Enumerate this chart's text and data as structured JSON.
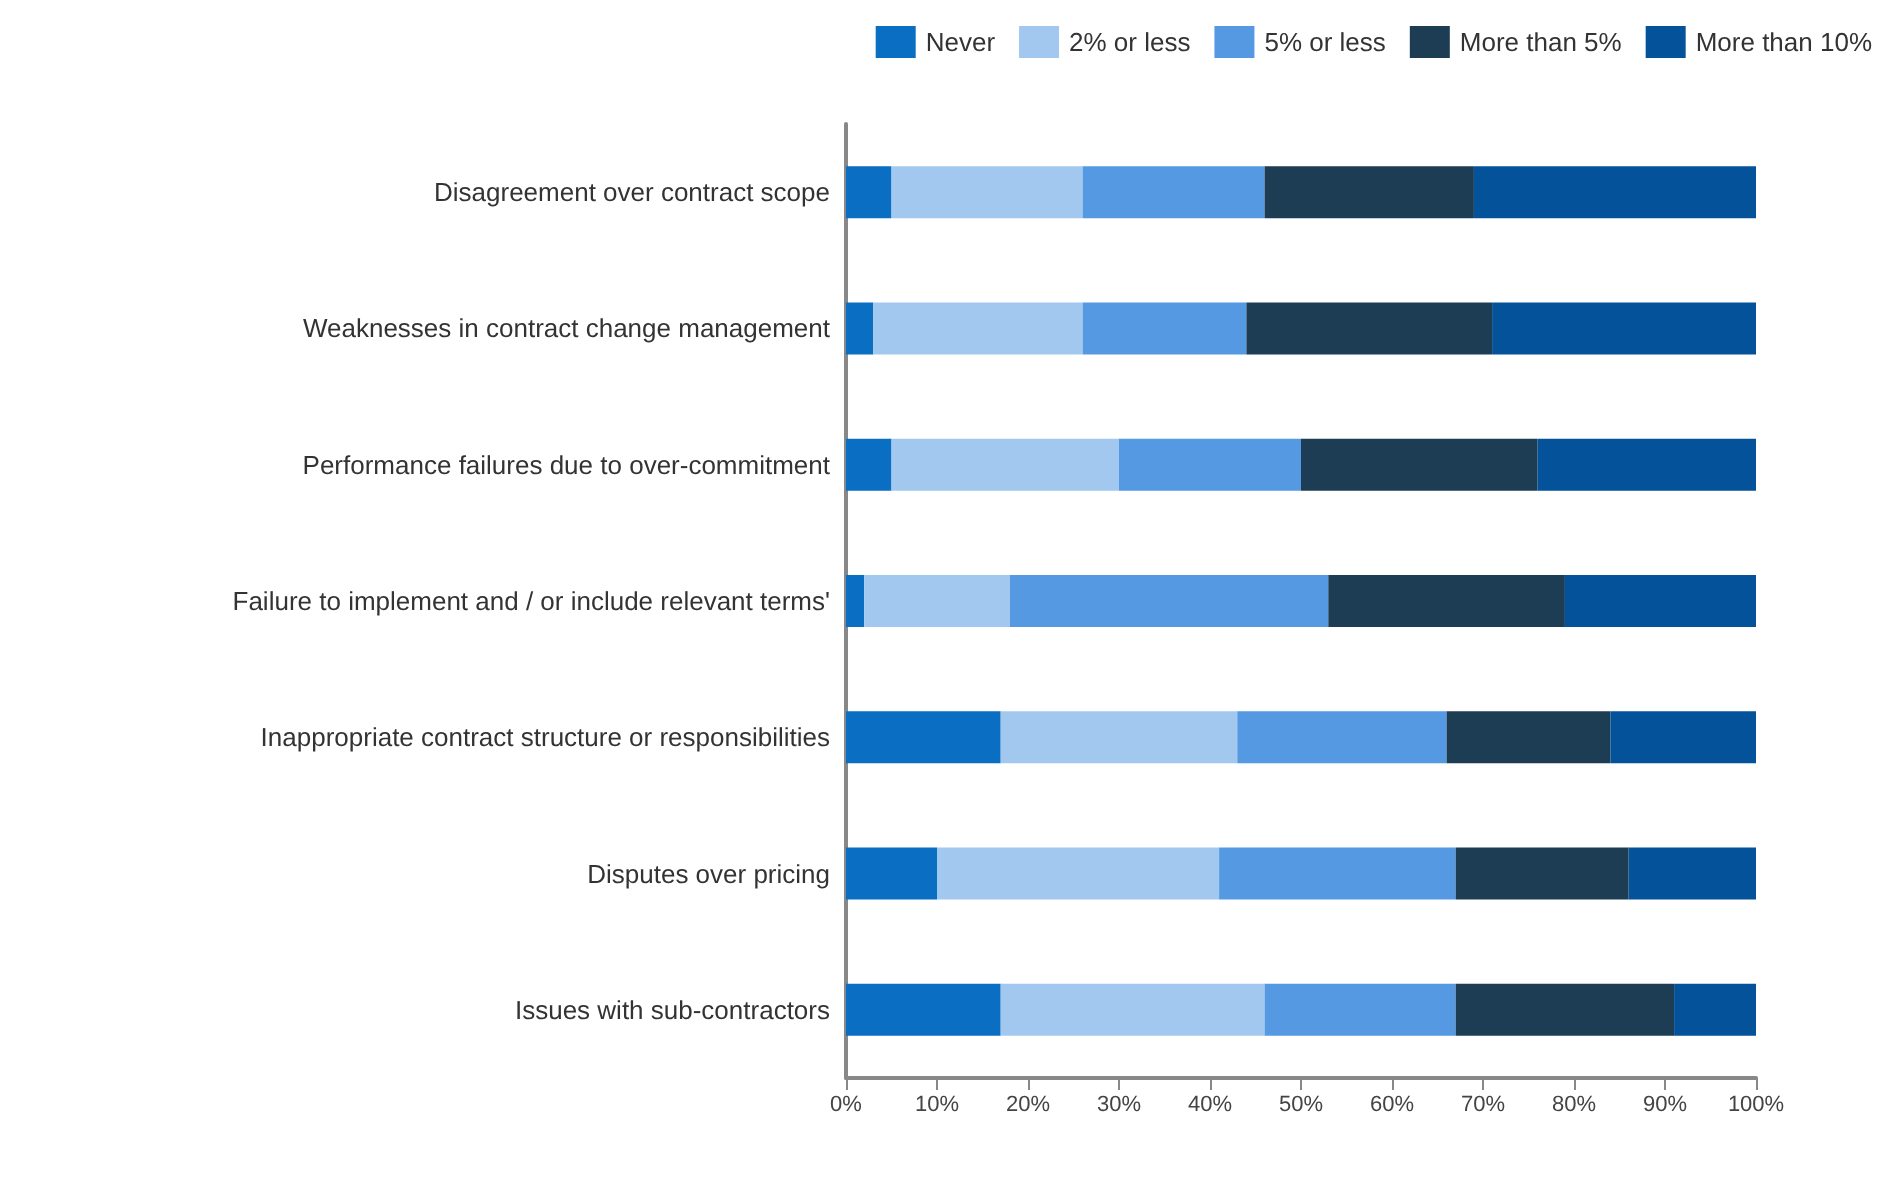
{
  "chart_data": {
    "type": "bar",
    "orientation": "horizontal",
    "stacked": true,
    "legend": "top right",
    "grid": false,
    "categories": [
      "Disagreement over contract scope",
      "Weaknesses in contract change management",
      "Performance failures due to over-commitment",
      "Failure to implement and / or include relevant terms'",
      "Inappropriate contract structure or responsibilities",
      "Disputes over pricing",
      "Issues with sub-contractors"
    ],
    "series": [
      {
        "name": "Never",
        "color": "#0a6fc2",
        "values": [
          5,
          3,
          5,
          2,
          17,
          10,
          17
        ]
      },
      {
        "name": "2% or less",
        "color": "#a3c8f0",
        "values": [
          21,
          23,
          25,
          16,
          26,
          31,
          29
        ]
      },
      {
        "name": "5% or less",
        "color": "#5599e3",
        "values": [
          20,
          18,
          20,
          35,
          23,
          26,
          21
        ]
      },
      {
        "name": "More than 5%",
        "color": "#1d3d55",
        "values": [
          23,
          27,
          26,
          26,
          18,
          19,
          24
        ]
      },
      {
        "name": "More than 10%",
        "color": "#04539a",
        "values": [
          31,
          29,
          24,
          21,
          16,
          14,
          9
        ]
      }
    ],
    "xlim": [
      0,
      100
    ],
    "xticks": [
      {
        "value": 0,
        "label": "0%"
      },
      {
        "value": 10,
        "label": "10%"
      },
      {
        "value": 20,
        "label": "20%"
      },
      {
        "value": 30,
        "label": "30%"
      },
      {
        "value": 40,
        "label": "40%"
      },
      {
        "value": 50,
        "label": "50%"
      },
      {
        "value": 60,
        "label": "60%"
      },
      {
        "value": 70,
        "label": "70%"
      },
      {
        "value": 80,
        "label": "80%"
      },
      {
        "value": 90,
        "label": "90%"
      },
      {
        "value": 100,
        "label": "100%"
      }
    ]
  }
}
